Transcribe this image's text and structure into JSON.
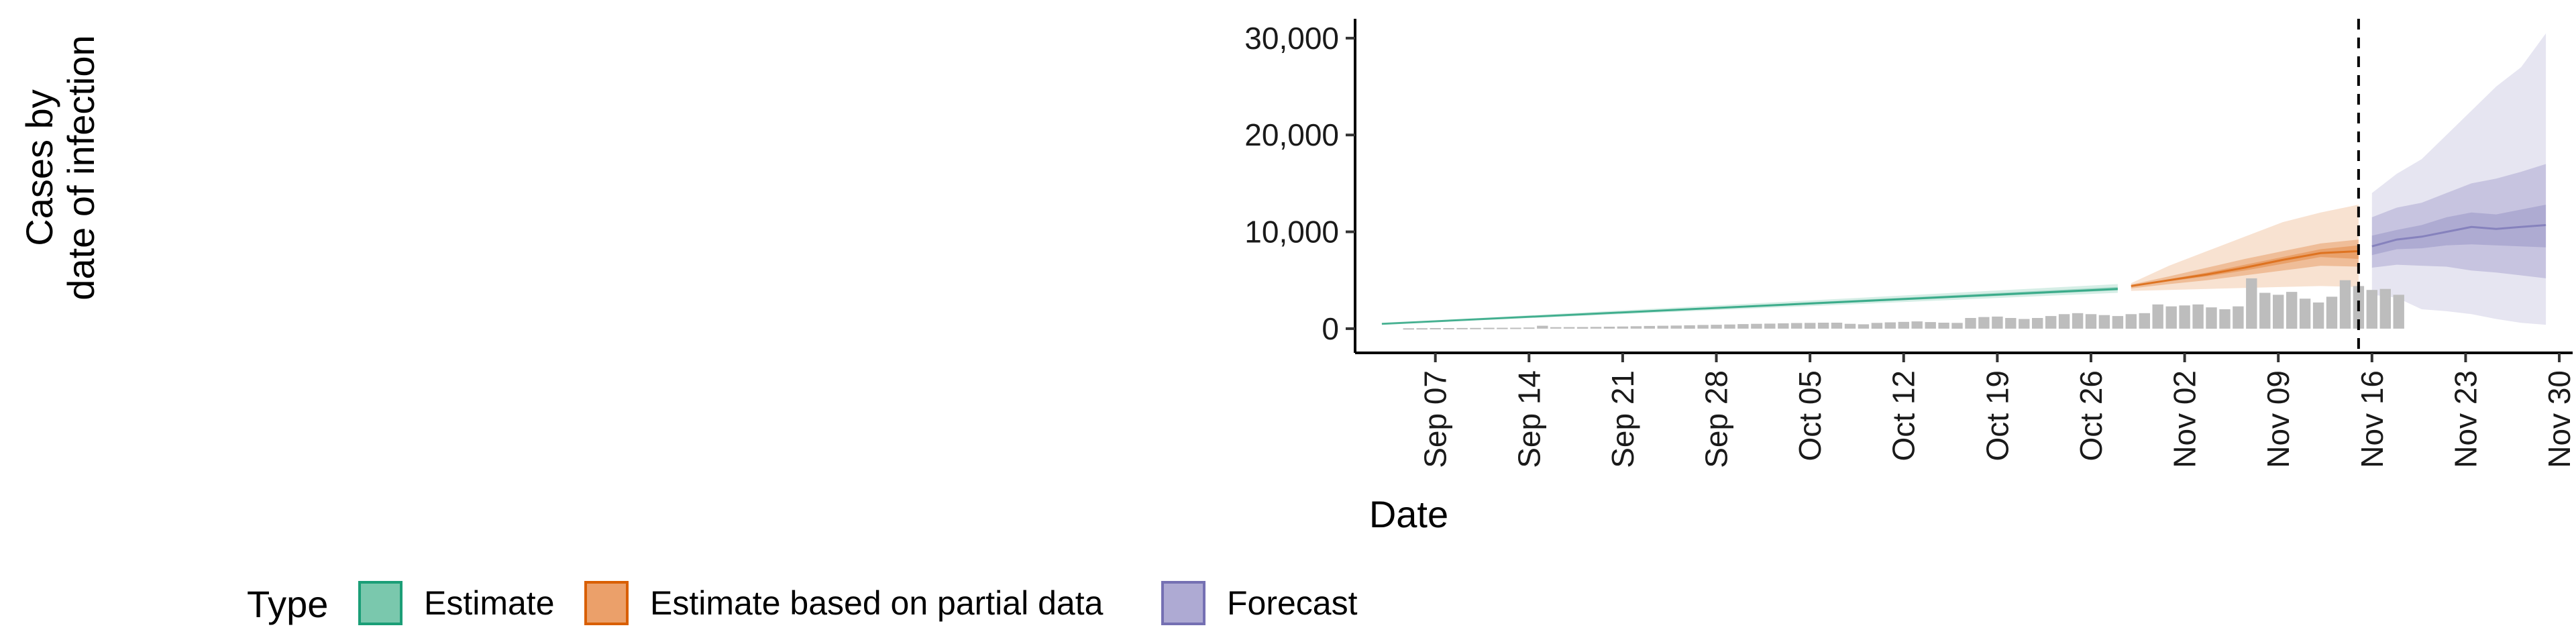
{
  "chart_data": {
    "type": "area",
    "xlabel": "Date",
    "ylabel_lines": [
      "Cases by",
      "date of infection"
    ],
    "x_range": [
      "2020-09-01",
      "2020-12-01"
    ],
    "ylim": [
      -2500,
      32000
    ],
    "y_ticks": [
      0,
      10000,
      20000,
      30000
    ],
    "y_tick_labels": [
      "0",
      "10,000",
      "20,000",
      "30,000"
    ],
    "x_ticks": [
      "2020-09-07",
      "2020-09-14",
      "2020-09-21",
      "2020-09-28",
      "2020-10-05",
      "2020-10-12",
      "2020-10-19",
      "2020-10-26",
      "2020-11-02",
      "2020-11-09",
      "2020-11-16",
      "2020-11-23",
      "2020-11-30"
    ],
    "x_tick_labels": [
      "Sep 07",
      "Sep 14",
      "Sep 21",
      "Sep 28",
      "Oct 05",
      "Oct 12",
      "Oct 19",
      "Oct 26",
      "Nov 02",
      "Nov 09",
      "Nov 16",
      "Nov 23",
      "Nov 30"
    ],
    "reference_line_date": "2020-11-15",
    "grid": false,
    "legend": {
      "title": "Type",
      "position": "bottom",
      "items": [
        {
          "label": "Estimate",
          "fill": "#7ac8ad",
          "stroke": "#1b9e77"
        },
        {
          "label": "Estimate based on partial data",
          "fill": "#eba06a",
          "stroke": "#d95f02"
        },
        {
          "label": "Forecast",
          "fill": "#aeaad3",
          "stroke": "#7570b3"
        }
      ]
    },
    "colors": {
      "estimate": "#1b9e77",
      "partial": "#d95f02",
      "forecast": "#7570b3",
      "bars": "#bdbdbd"
    },
    "reported_cases": {
      "start_date": "2020-09-05",
      "values": [
        40,
        50,
        60,
        60,
        70,
        80,
        90,
        90,
        100,
        120,
        300,
        150,
        160,
        170,
        180,
        200,
        220,
        250,
        280,
        300,
        320,
        350,
        380,
        400,
        430,
        470,
        500,
        520,
        550,
        580,
        600,
        620,
        620,
        500,
        450,
        600,
        650,
        700,
        750,
        680,
        620,
        600,
        1100,
        1200,
        1250,
        1100,
        1000,
        1100,
        1300,
        1500,
        1600,
        1500,
        1400,
        1300,
        1500,
        1600,
        2500,
        2300,
        2400,
        2500,
        2200,
        2000,
        2300,
        5200,
        3700,
        3500,
        3800,
        3100,
        2700,
        3300,
        5000,
        4400,
        4000,
        4100,
        3500
      ]
    },
    "series": [
      {
        "name": "Estimate",
        "key": "estimate",
        "start_date": "2020-09-03",
        "end_date": "2020-10-28",
        "median": [
          500,
          4100
        ],
        "bands": [
          {
            "level": "90%",
            "low": [
              430,
              3700
            ],
            "high": [
              570,
              4600
            ]
          },
          {
            "level": "50%",
            "low": [
              470,
              3950
            ],
            "high": [
              530,
              4300
            ]
          },
          {
            "level": "20%",
            "low": [
              485,
              4050
            ],
            "high": [
              515,
              4180
            ]
          }
        ]
      },
      {
        "name": "Estimate based on partial data",
        "key": "partial",
        "start_date": "2020-10-29",
        "end_date": "2020-11-15",
        "median": [
          4400,
          5000,
          5600,
          6300,
          7100,
          7800,
          8000
        ],
        "bands": [
          {
            "level": "90%",
            "low": [
              3900,
              4000,
              4100,
              4200,
              4300,
              4400,
              4300
            ],
            "high": [
              4700,
              6500,
              8000,
              9500,
              11000,
              12000,
              12800
            ]
          },
          {
            "level": "50%",
            "low": [
              4150,
              4600,
              5000,
              5500,
              6000,
              6500,
              6400
            ],
            "high": [
              4550,
              5400,
              6300,
              7200,
              8000,
              8800,
              9200
            ]
          },
          {
            "level": "20%",
            "low": [
              4350,
              4900,
              5400,
              6000,
              6700,
              7400,
              7200
            ],
            "high": [
              4450,
              5100,
              5800,
              6600,
              7400,
              8200,
              8600
            ]
          }
        ]
      },
      {
        "name": "Forecast",
        "key": "forecast",
        "start_date": "2020-11-16",
        "end_date": "2020-11-29",
        "median": [
          8500,
          9200,
          9500,
          10000,
          10500,
          10300,
          10500,
          10700
        ],
        "bands": [
          {
            "level": "90%",
            "low": [
              3500,
              3200,
              2000,
              1800,
              1500,
              1000,
              600,
              400
            ],
            "high": [
              14000,
              16000,
              17500,
              20000,
              22500,
              25000,
              27000,
              30500
            ]
          },
          {
            "level": "50%",
            "low": [
              6300,
              6600,
              6500,
              6400,
              6000,
              5800,
              5500,
              5200
            ],
            "high": [
              11500,
              12500,
              13000,
              14000,
              15000,
              15500,
              16200,
              17000
            ]
          },
          {
            "level": "20%",
            "low": [
              7600,
              8200,
              8300,
              8600,
              8700,
              8600,
              8500,
              8400
            ],
            "high": [
              9600,
              10200,
              10700,
              11500,
              12000,
              11800,
              12300,
              12800
            ]
          }
        ]
      }
    ]
  }
}
